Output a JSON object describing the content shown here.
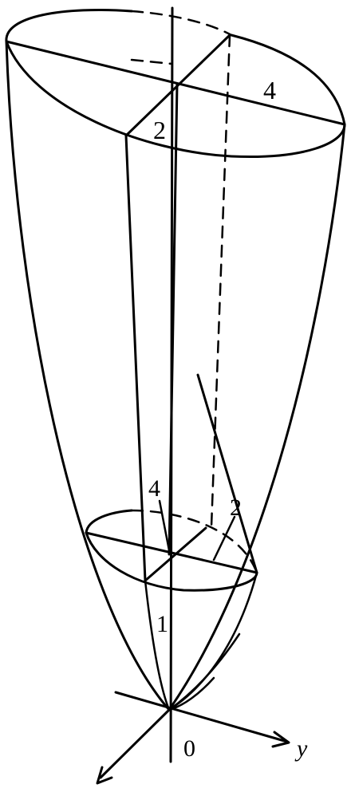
{
  "figure": {
    "description_labels": {
      "top_long_dimension": "4",
      "top_short_dimension": "2",
      "bottom_long_dimension": "4",
      "bottom_short_dimension": "2",
      "height_marker": "1",
      "origin": "0",
      "y_axis": "y"
    },
    "colors": {
      "ink": "#000000",
      "paper": "#ffffff"
    }
  }
}
